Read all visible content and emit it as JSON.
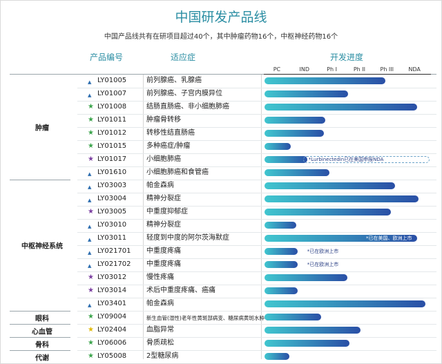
{
  "title": "中国研发产品线",
  "subtitle": "中国产品线共有在研项目超过40个，其中肿瘤药物16个，中枢神经药物16个",
  "headers": {
    "code": "产品编号",
    "indication": "适应症",
    "progress": "开发进度"
  },
  "star_colors": {
    "blue": "#2f6fb0",
    "green": "#3aa34a",
    "purple": "#7b3fa0",
    "yellow": "#e0b800"
  },
  "chart_data": {
    "type": "bar",
    "title": "中国研发产品线",
    "subtitle": "中国产品线共有在研项目超过40个，其中肿瘤药物16个，中枢神经药物16个",
    "stages": [
      "PC",
      "IND",
      "Ph I",
      "Ph II",
      "Ph III",
      "NDA"
    ],
    "xlabel": "开发进度",
    "x_range": [
      0,
      6
    ],
    "categories": [
      {
        "name": "肿瘤",
        "rows": [
          0,
          7
        ]
      },
      {
        "name": "中枢神经系统",
        "rows": [
          8,
          17
        ]
      },
      {
        "name": "眼科",
        "rows": [
          18,
          18
        ]
      },
      {
        "name": "心血管",
        "rows": [
          19,
          19
        ]
      },
      {
        "name": "骨科",
        "rows": [
          20,
          20
        ]
      },
      {
        "name": "代谢",
        "rows": [
          21,
          21
        ]
      }
    ],
    "rows": [
      {
        "code": "LY01005",
        "indication": "前列腺癌、乳腺癌",
        "marker": "blue",
        "progress": 4.4,
        "note": ""
      },
      {
        "code": "LY01007",
        "indication": "前列腺癌、子宫内膜异位",
        "marker": "blue",
        "progress": 3.05,
        "note": ""
      },
      {
        "code": "LY01008",
        "indication": "结肠直肠癌、非小细胞肺癌",
        "marker": "green",
        "progress": 5.55,
        "note": ""
      },
      {
        "code": "LY01011",
        "indication": "肿瘤骨转移",
        "marker": "green",
        "progress": 2.2,
        "note": ""
      },
      {
        "code": "LY01012",
        "indication": "转移性结直肠癌",
        "marker": "green",
        "progress": 2.15,
        "note": ""
      },
      {
        "code": "LY01015",
        "indication": "多种癌症/肿瘤",
        "marker": "green",
        "progress": 0.95,
        "note": ""
      },
      {
        "code": "LY01017",
        "indication": "小细胞肺癌",
        "marker": "purple",
        "progress": 1.55,
        "note": "*Lurbinectedin已在美国申报NDA",
        "note_style": "box"
      },
      {
        "code": "LY01610",
        "indication": "小细胞肺癌和食管癌",
        "marker": "blue",
        "progress": 2.35,
        "note": ""
      },
      {
        "code": "LY03003",
        "indication": "帕金森病",
        "marker": "blue",
        "progress": 4.75,
        "note": ""
      },
      {
        "code": "LY03004",
        "indication": "精神分裂症",
        "marker": "blue",
        "progress": 5.6,
        "note": ""
      },
      {
        "code": "LY03005",
        "indication": "中重度抑郁症",
        "marker": "purple",
        "progress": 4.6,
        "note": ""
      },
      {
        "code": "LY03010",
        "indication": "精神分裂症",
        "marker": "blue",
        "progress": 1.15,
        "note": ""
      },
      {
        "code": "LY03011",
        "indication": "轻度到中度的阿尔茨海默症",
        "marker": "blue",
        "progress": 5.55,
        "note": "*已在美国、欧洲上市",
        "note_style": "in"
      },
      {
        "code": "LY021701",
        "indication": "中重度疼痛",
        "marker": "blue",
        "progress": 1.2,
        "note": "*已在欧洲上市",
        "note_style": "out"
      },
      {
        "code": "LY021702",
        "indication": "中重度疼痛",
        "marker": "blue",
        "progress": 1.2,
        "note": "*已在欧洲上市",
        "note_style": "out"
      },
      {
        "code": "LY03012",
        "indication": "慢性疼痛",
        "marker": "purple",
        "progress": 3.0,
        "note": ""
      },
      {
        "code": "LY03014",
        "indication": "术后中重度疼痛、癌痛",
        "marker": "purple",
        "progress": 1.2,
        "note": ""
      },
      {
        "code": "LY03401",
        "indication": "帕金森病",
        "marker": "blue",
        "progress": 5.85,
        "note": ""
      },
      {
        "code": "LY09004",
        "indication": "新生血管(湿性)老年性黄斑部病变、糖尿病黄斑水肿等",
        "marker": "green",
        "progress": 2.05,
        "note": ""
      },
      {
        "code": "LY02404",
        "indication": "血脂异常",
        "marker": "yellow",
        "progress": 3.5,
        "note": ""
      },
      {
        "code": "LY06006",
        "indication": "骨质疏松",
        "marker": "green",
        "progress": 3.1,
        "note": ""
      },
      {
        "code": "LY05008",
        "indication": "2型糖尿病",
        "marker": "green",
        "progress": 0.9,
        "note": ""
      }
    ]
  }
}
